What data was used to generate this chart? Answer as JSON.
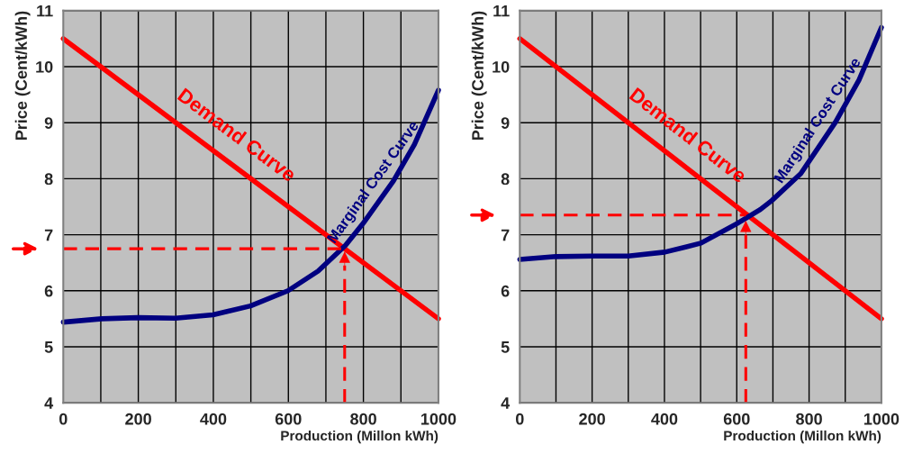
{
  "chart_data": [
    {
      "type": "line",
      "xlabel": "Production (Millon kWh)",
      "ylabel": "Price (Cent/kWh)",
      "xlim": [
        0,
        1000
      ],
      "ylim": [
        4,
        11
      ],
      "xticks": [
        0,
        {
          "value": 100,
          "label": null
        },
        200,
        {
          "value": 300,
          "label": null
        },
        400,
        {
          "value": 500,
          "label": null
        },
        600,
        {
          "value": 700,
          "label": null
        },
        800,
        {
          "value": 900,
          "label": null
        },
        1000
      ],
      "yticks": [
        4,
        5,
        6,
        7,
        8,
        9,
        10,
        11
      ],
      "grid": true,
      "legend": false,
      "series": [
        {
          "name": "Demand Curve",
          "color": "#ff0000",
          "x": [
            0,
            1000
          ],
          "values": [
            10.5,
            5.5
          ],
          "line_style": "solid"
        },
        {
          "name": "Marginal Cost Curve",
          "color": "#000080",
          "x": [
            0,
            103,
            199,
            299,
            399,
            499,
            599,
            679,
            752,
            800,
            880,
            936,
            1000
          ],
          "values": [
            5.44,
            5.5,
            5.52,
            5.51,
            5.57,
            5.73,
            6.0,
            6.35,
            6.81,
            7.21,
            7.96,
            8.61,
            9.58
          ],
          "line_style": "solid"
        },
        {
          "color": "#ff0000",
          "x": [
            0,
            750
          ],
          "values": [
            6.75,
            6.75
          ],
          "line_style": "dashed"
        },
        {
          "color": "#ff0000",
          "x": [
            750,
            750
          ],
          "values": [
            4,
            6.45
          ],
          "line_style": "dashed"
        }
      ]
    },
    {
      "type": "line",
      "xlabel": "Production (Millon kWh)",
      "ylabel": "Price (Cent/kWh)",
      "xlim": [
        0,
        1000
      ],
      "ylim": [
        4,
        11
      ],
      "xticks": [
        0,
        {
          "value": 100,
          "label": null
        },
        200,
        {
          "value": 300,
          "label": null
        },
        400,
        {
          "value": 500,
          "label": null
        },
        600,
        {
          "value": 700,
          "label": null
        },
        800,
        {
          "value": 900,
          "label": null
        },
        1000
      ],
      "yticks": [
        4,
        5,
        6,
        7,
        8,
        9,
        10,
        11
      ],
      "grid": true,
      "legend": false,
      "series": [
        {
          "name": "Demand Curve",
          "color": "#ff0000",
          "x": [
            0,
            1000
          ],
          "values": [
            10.5,
            5.5
          ],
          "line_style": "solid"
        },
        {
          "name": "Marginal Cost Curve",
          "color": "#000080",
          "x": [
            0,
            100,
            200,
            300,
            401,
            501,
            601,
            665,
            697,
            777,
            873,
            938,
            1000
          ],
          "values": [
            6.56,
            6.61,
            6.62,
            6.62,
            6.69,
            6.85,
            7.2,
            7.45,
            7.61,
            8.09,
            9.01,
            9.76,
            10.7
          ],
          "line_style": "solid"
        },
        {
          "color": "#ff0000",
          "x": [
            0,
            625
          ],
          "values": [
            7.35,
            7.35
          ],
          "line_style": "dashed"
        },
        {
          "color": "#ff0000",
          "x": [
            625,
            625
          ],
          "values": [
            4,
            7.0
          ],
          "line_style": "dashed"
        }
      ]
    }
  ]
}
